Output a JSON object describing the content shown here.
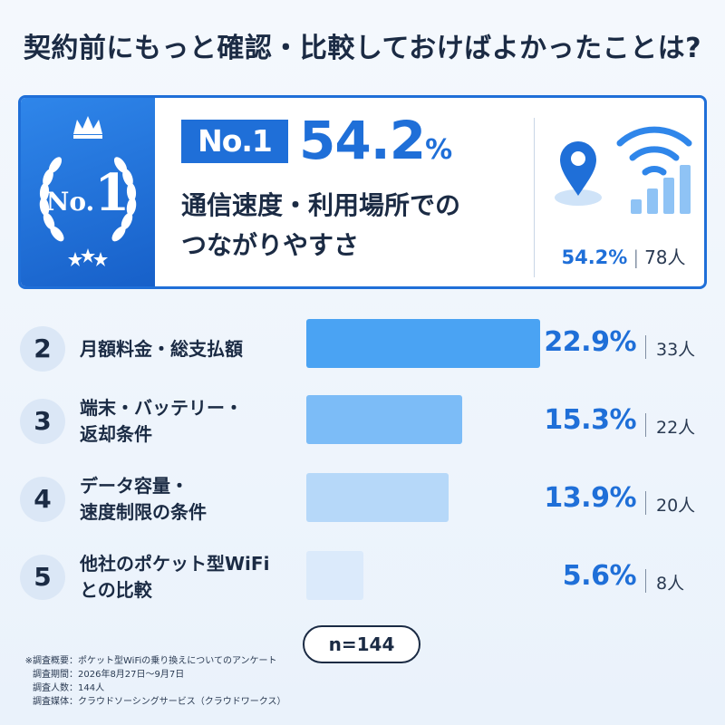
{
  "title": "契約前にもっと確認・比較しておけばよかったことは?",
  "colors": {
    "accent": "#1f6fd8",
    "text": "#1b2b44",
    "bar2": "#4aa3f3",
    "bar3": "#7cbcf7",
    "bar4": "#b6d8f9",
    "bar5": "#dbeafb"
  },
  "top": {
    "badge_no": "No.",
    "badge_num": "1",
    "rank_label": "No.1",
    "percent_value": "54.2",
    "percent_unit": "%",
    "name_line1": "通信速度・利用場所での",
    "name_line2": "つながりやすさ",
    "stat_percent": "54.2%",
    "stat_count": "78人",
    "icons": [
      "map-pin-icon",
      "wifi-signal-icon"
    ]
  },
  "chart_data": {
    "type": "bar",
    "orientation": "horizontal",
    "title": "契約前にもっと確認・比較しておけばよかったことは?",
    "categories": [
      "通信速度・利用場所でのつながりやすさ",
      "月額料金・総支払額",
      "端末・バッテリー・返却条件",
      "データ容量・速度制限の条件",
      "他社のポケット型WiFiとの比較"
    ],
    "values": [
      54.2,
      22.9,
      15.3,
      13.9,
      5.6
    ],
    "counts": [
      78,
      33,
      22,
      20,
      8
    ],
    "unit": "%",
    "n": 144
  },
  "rows": [
    {
      "rank": "2",
      "label_lines": [
        "月額料金・総支払額"
      ],
      "pct": "22.9%",
      "count": "33人",
      "value": 22.9
    },
    {
      "rank": "3",
      "label_lines": [
        "端末・バッテリー・",
        "返却条件"
      ],
      "pct": "15.3%",
      "count": "22人",
      "value": 15.3
    },
    {
      "rank": "4",
      "label_lines": [
        "データ容量・",
        "速度制限の条件"
      ],
      "pct": "13.9%",
      "count": "20人",
      "value": 13.9
    },
    {
      "rank": "5",
      "label_lines": [
        "他社のポケット型WiFi",
        "との比較"
      ],
      "pct": "5.6%",
      "count": "8人",
      "value": 5.6
    }
  ],
  "n_label": "n=144",
  "survey": [
    {
      "key": "※調査概要：",
      "value": "ポケット型WiFiの乗り換えについてのアンケート"
    },
    {
      "key": "調査期間：",
      "value": "2026年8月27日〜9月7日"
    },
    {
      "key": "調査人数：",
      "value": "144人"
    },
    {
      "key": "調査媒体：",
      "value": "クラウドソーシングサービス（クラウドワークス）"
    }
  ]
}
